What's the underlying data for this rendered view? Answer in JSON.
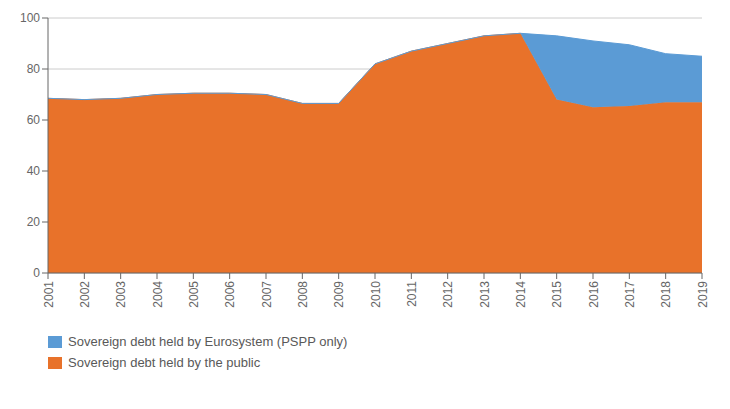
{
  "chart_data": {
    "type": "area",
    "stacked": true,
    "x": [
      2001,
      2002,
      2003,
      2004,
      2005,
      2006,
      2007,
      2008,
      2009,
      2010,
      2011,
      2012,
      2013,
      2014,
      2015,
      2016,
      2017,
      2018,
      2019
    ],
    "series": [
      {
        "name": "Sovereign debt held by the public",
        "color": "#E8722A",
        "values": [
          68.5,
          68.0,
          68.5,
          70.0,
          70.5,
          70.5,
          70.0,
          66.5,
          66.5,
          82.0,
          87.0,
          90.0,
          93.0,
          94.0,
          68.0,
          65.0,
          65.5,
          67.0,
          67.0
        ]
      },
      {
        "name": "Sovereign debt held by Eurosystem (PSPP only)",
        "color": "#5B9BD5",
        "values": [
          0,
          0,
          0,
          0,
          0,
          0,
          0,
          0,
          0,
          0,
          0,
          0,
          0,
          0,
          25.0,
          26.0,
          24.0,
          19.0,
          18.0
        ]
      }
    ],
    "xlim": [
      2001,
      2019
    ],
    "xticks": [
      2001,
      2002,
      2003,
      2004,
      2005,
      2006,
      2007,
      2008,
      2009,
      2010,
      2011,
      2012,
      2013,
      2014,
      2015,
      2016,
      2017,
      2018,
      2019
    ],
    "ylim": [
      0,
      100
    ],
    "yticks": [
      0,
      20,
      40,
      60,
      80,
      100
    ],
    "grid": true,
    "legend": "lower left"
  }
}
